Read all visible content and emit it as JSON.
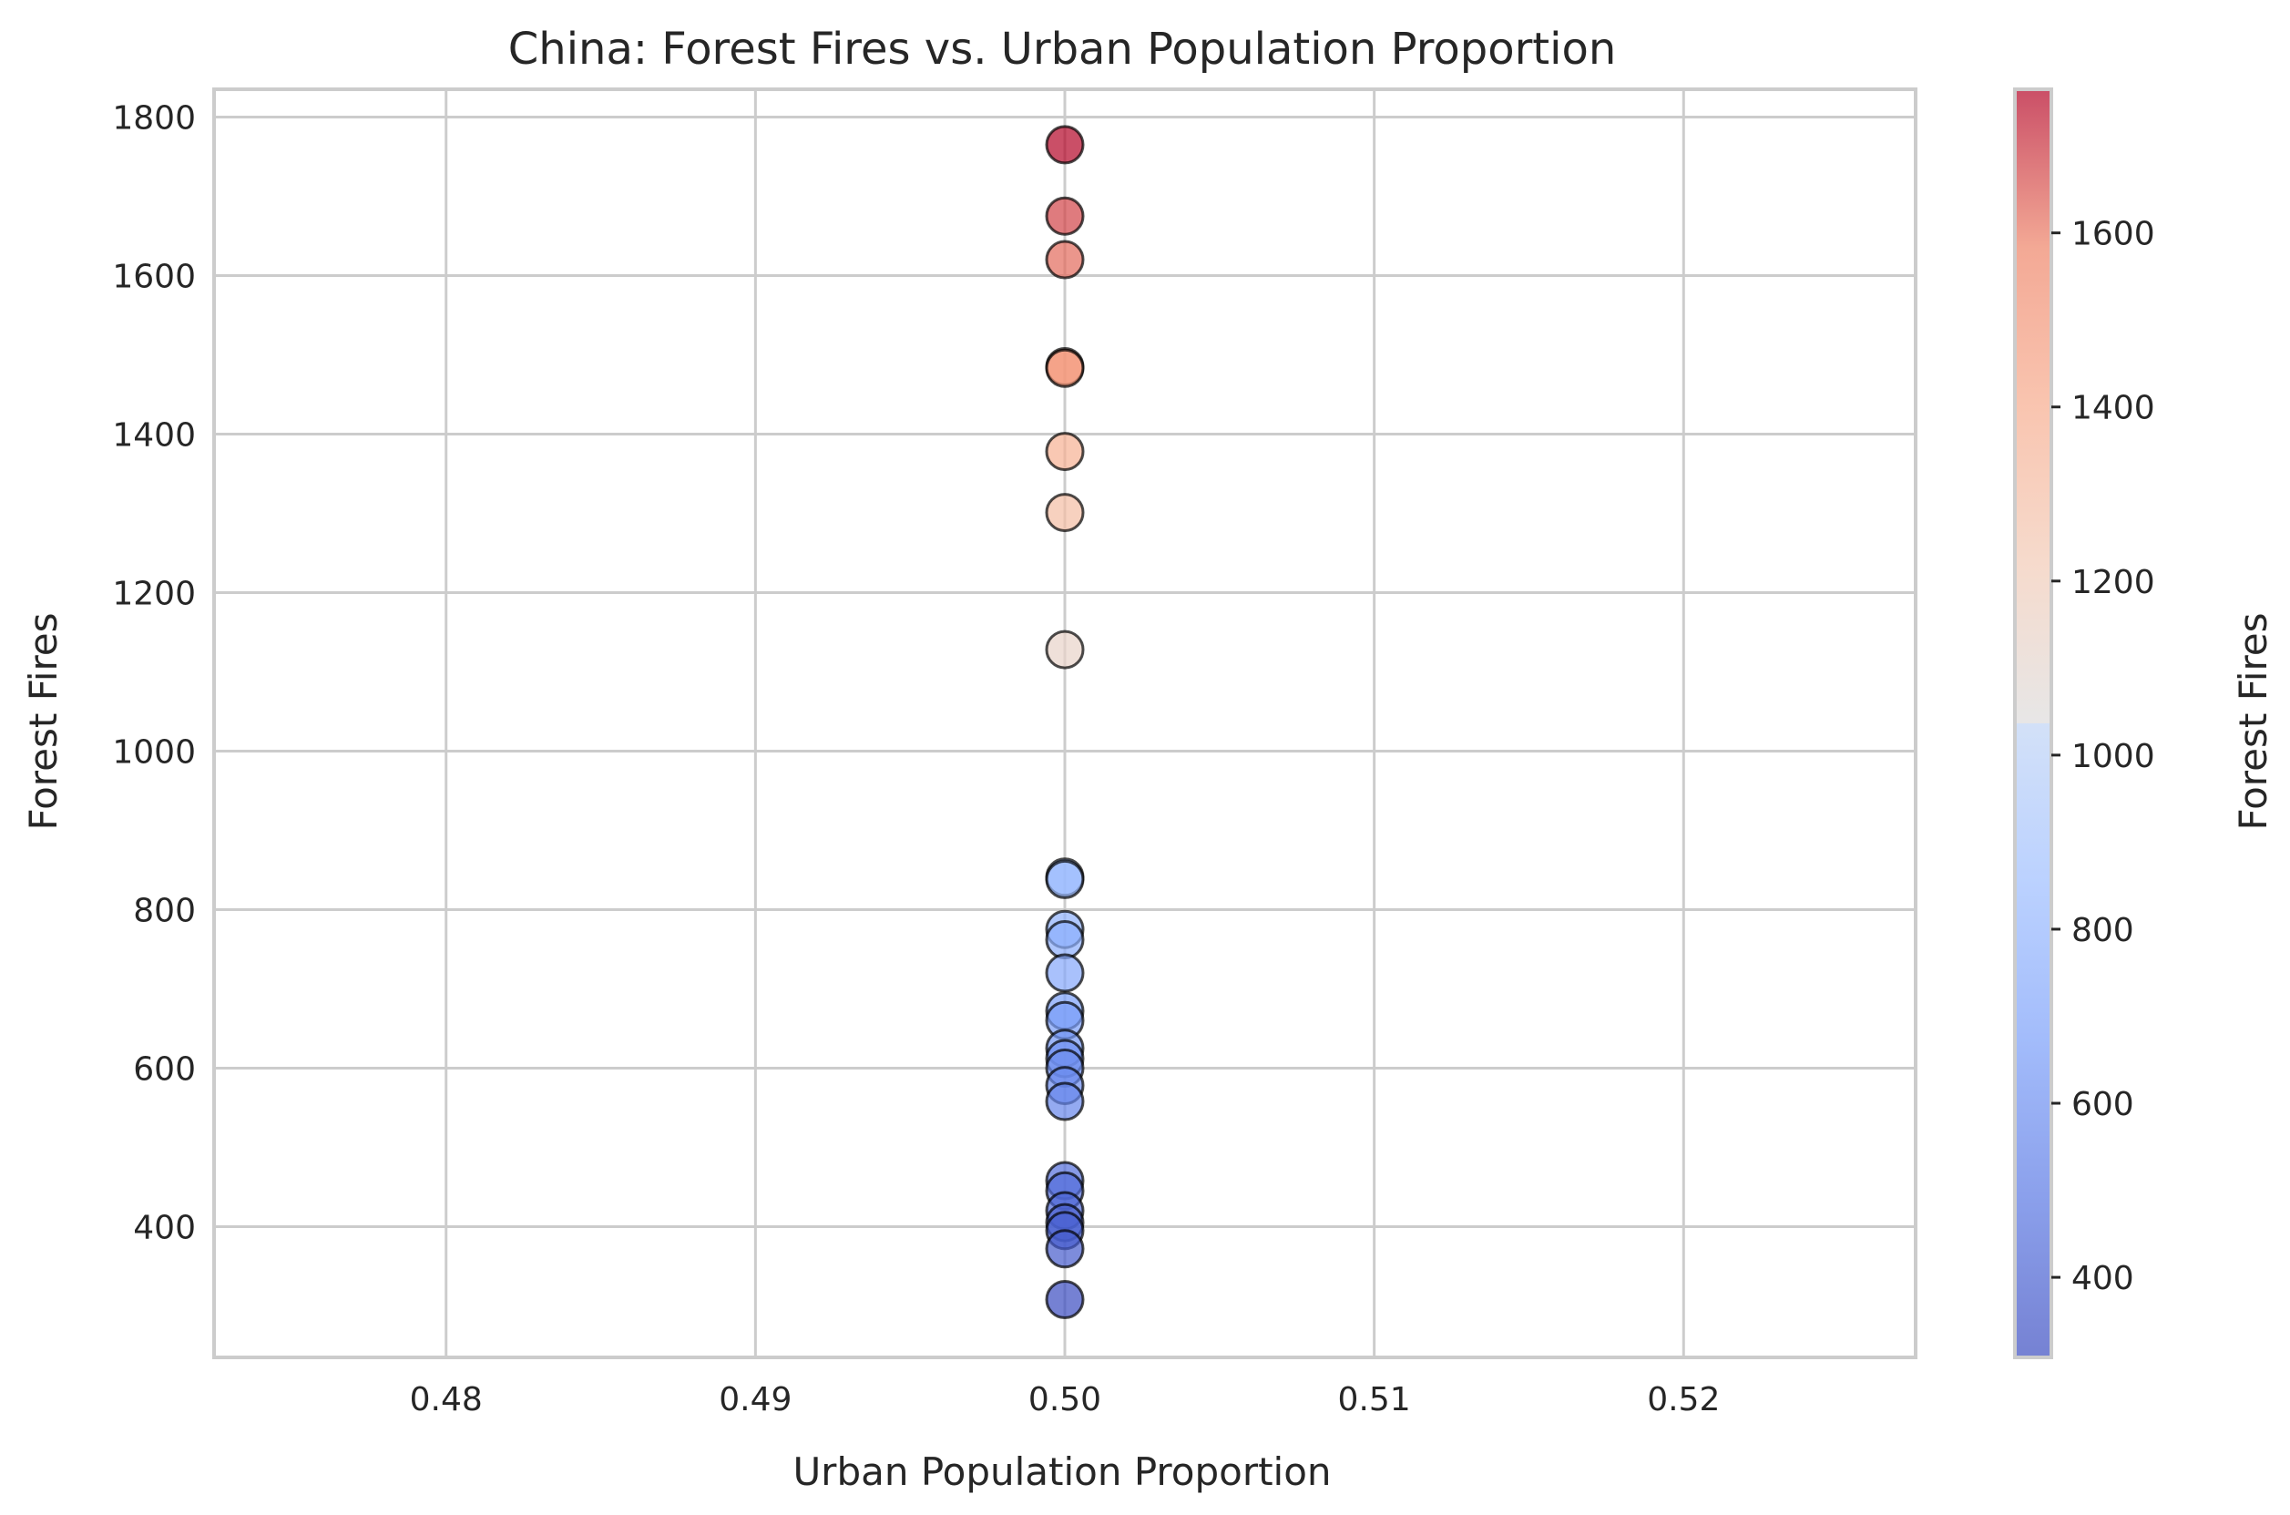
{
  "chart_data": {
    "type": "scatter",
    "title": "China: Forest Fires vs. Urban Population Proportion",
    "xlabel": "Urban Population Proportion",
    "ylabel": "Forest Fires",
    "xlim": [
      0.4725,
      0.5275
    ],
    "ylim": [
      235,
      1835
    ],
    "x_ticks": [
      0.48,
      0.49,
      0.5,
      0.51,
      0.52
    ],
    "x_tick_labels": [
      "0.48",
      "0.49",
      "0.50",
      "0.51",
      "0.52"
    ],
    "y_ticks": [
      400,
      600,
      800,
      1000,
      1200,
      1400,
      1600,
      1800
    ],
    "y_tick_labels": [
      "400",
      "600",
      "800",
      "1000",
      "1200",
      "1400",
      "1600",
      "1800"
    ],
    "grid": true,
    "colormap": "coolwarm",
    "colorbar": {
      "label": "Forest Fires",
      "range": [
        308,
        1765
      ],
      "ticks": [
        400,
        600,
        800,
        1000,
        1200,
        1400,
        1600
      ],
      "tick_labels": [
        "400",
        "600",
        "800",
        "1000",
        "1200",
        "1400",
        "1600"
      ]
    },
    "points": [
      {
        "x": 0.5,
        "y": 1765
      },
      {
        "x": 0.5,
        "y": 1675
      },
      {
        "x": 0.5,
        "y": 1620
      },
      {
        "x": 0.5,
        "y": 1485
      },
      {
        "x": 0.5,
        "y": 1483
      },
      {
        "x": 0.5,
        "y": 1378
      },
      {
        "x": 0.5,
        "y": 1301
      },
      {
        "x": 0.5,
        "y": 1128
      },
      {
        "x": 0.5,
        "y": 841
      },
      {
        "x": 0.5,
        "y": 838
      },
      {
        "x": 0.5,
        "y": 775
      },
      {
        "x": 0.5,
        "y": 762
      },
      {
        "x": 0.5,
        "y": 720
      },
      {
        "x": 0.5,
        "y": 672
      },
      {
        "x": 0.5,
        "y": 660
      },
      {
        "x": 0.5,
        "y": 625
      },
      {
        "x": 0.5,
        "y": 612
      },
      {
        "x": 0.5,
        "y": 600
      },
      {
        "x": 0.5,
        "y": 578
      },
      {
        "x": 0.5,
        "y": 558
      },
      {
        "x": 0.5,
        "y": 458
      },
      {
        "x": 0.5,
        "y": 445
      },
      {
        "x": 0.5,
        "y": 420
      },
      {
        "x": 0.5,
        "y": 405
      },
      {
        "x": 0.5,
        "y": 395
      },
      {
        "x": 0.5,
        "y": 372
      },
      {
        "x": 0.5,
        "y": 308
      }
    ]
  }
}
